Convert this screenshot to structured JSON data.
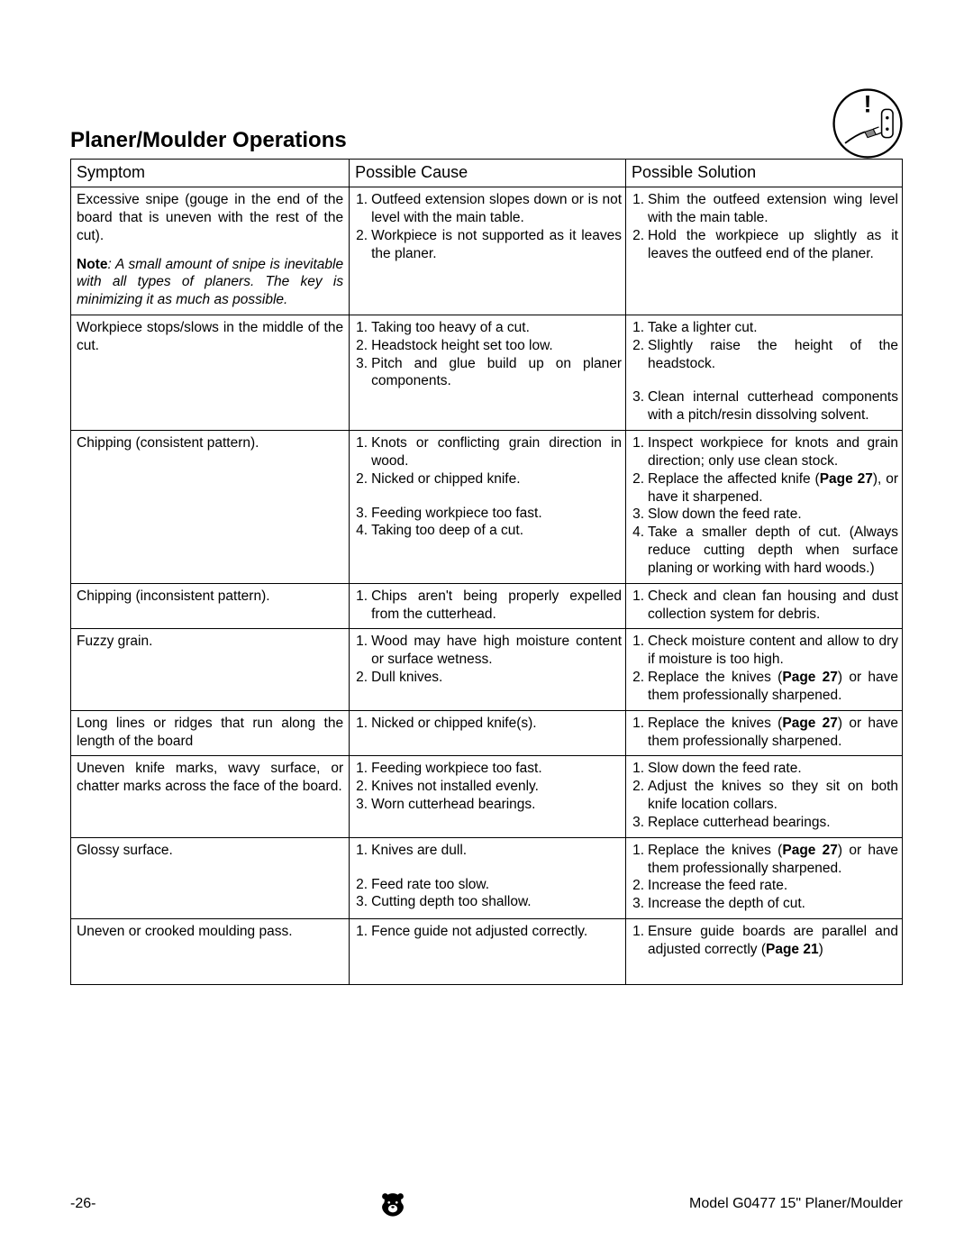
{
  "title": "Planer/Moulder Operations",
  "columns": [
    "Symptom",
    "Possible Cause",
    "Possible Solution"
  ],
  "page_ref_27": "Page 27",
  "page_ref_21": "Page 21",
  "rows": [
    {
      "symptom": "Excessive snipe (gouge in the end of the board that is uneven with the rest of the cut).",
      "note_label": "Note",
      "note": ": A small amount of snipe is inevitable with all types of planers. The key is minimizing it as much as possible.",
      "cause": [
        "Outfeed extension slopes down or is not level with the main table.",
        "Workpiece is not supported as it leaves the planer."
      ],
      "solution": [
        "Shim the outfeed extension wing level with the main table.",
        "Hold the workpiece up slightly as it leaves the outfeed end of the planer."
      ]
    },
    {
      "symptom": "Workpiece stops/slows in the middle of the cut.",
      "cause": [
        "Taking too heavy of a cut.",
        "Headstock height set too low.",
        "Pitch and glue build up on planer components."
      ],
      "solution": [
        "Take a lighter cut.",
        "Slightly raise the height of the headstock.",
        "Clean internal cutterhead components with a pitch/resin dissolving solvent."
      ],
      "solution_gap_after": 1
    },
    {
      "symptom": "Chipping (consistent pattern).",
      "cause": [
        "Knots or conflicting grain direction in wood.",
        "Nicked or chipped knife.",
        "Feeding workpiece too fast.",
        "Taking too deep of a cut."
      ],
      "cause_gap_after": 1,
      "solution": [
        "Inspect workpiece for knots and grain direction; only use clean stock.",
        {
          "pre": "Replace the affected knife (",
          "ref": "Page 27",
          "post": "), or have it sharpened."
        },
        "Slow down the feed rate.",
        "Take a smaller depth of cut. (Always reduce cutting depth when surface planing or working with hard woods.)"
      ]
    },
    {
      "symptom": "Chipping (inconsistent pattern).",
      "cause": [
        "Chips aren't being properly expelled from the cutterhead."
      ],
      "solution": [
        "Check and clean fan housing and dust collection system for debris."
      ]
    },
    {
      "symptom": "Fuzzy grain.",
      "cause": [
        "Wood may have high moisture content or surface wetness.",
        "Dull knives."
      ],
      "solution": [
        "Check moisture content and allow to dry if moisture is too high.",
        {
          "pre": "Replace the knives (",
          "ref": "Page 27",
          "post": ") or have them professionally sharpened."
        }
      ]
    },
    {
      "symptom": "Long lines or ridges that run along the length of the board",
      "cause": [
        "Nicked or chipped knife(s)."
      ],
      "solution": [
        {
          "pre": "Replace the knives (",
          "ref": "Page 27",
          "post": ") or have them professionally sharpened."
        }
      ]
    },
    {
      "symptom": "Uneven knife marks, wavy surface, or chatter marks across the face of the board.",
      "cause": [
        "Feeding workpiece too fast.",
        "Knives not installed evenly.",
        "Worn cutterhead bearings."
      ],
      "solution": [
        "Slow down the feed rate.",
        "Adjust the knives so they sit on both knife location collars.",
        "Replace cutterhead bearings."
      ]
    },
    {
      "symptom": "Glossy surface.",
      "cause": [
        "Knives are dull.",
        "Feed rate too slow.",
        "Cutting depth too shallow."
      ],
      "cause_gap_after": 0,
      "solution": [
        {
          "pre": "Replace the knives (",
          "ref": "Page 27",
          "post": ") or have them professionally sharpened."
        },
        "Increase the feed rate.",
        "Increase the depth of cut."
      ]
    },
    {
      "symptom": "Uneven or crooked moulding pass.",
      "cause": [
        "Fence guide not adjusted correctly."
      ],
      "solution": [
        {
          "pre": "Ensure guide boards are parallel and adjusted correctly (",
          "ref": "Page 21",
          "post": ")"
        }
      ],
      "extra_bottom": true
    }
  ],
  "footer": {
    "page_number": "-26-",
    "model": "Model G0477 15\" Planer/Moulder"
  }
}
